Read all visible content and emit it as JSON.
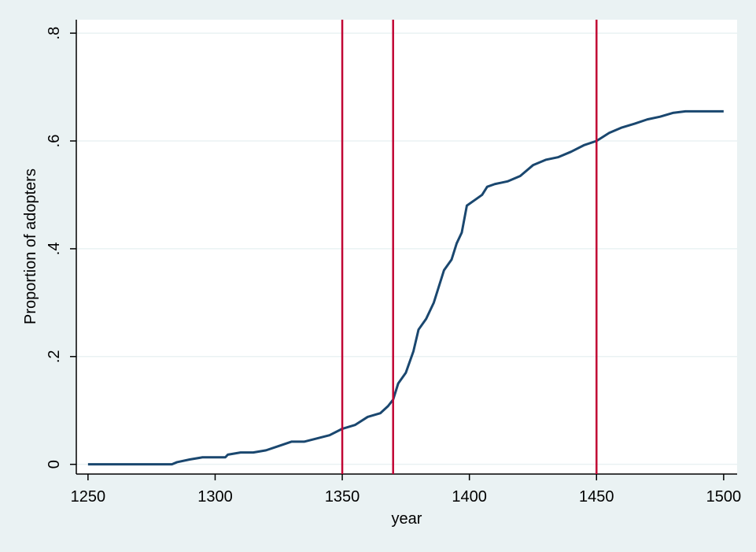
{
  "chart_data": {
    "type": "line",
    "x_label": "year",
    "y_label": "Proportion of adopters",
    "x": [
      1250,
      1283,
      1285,
      1290,
      1295,
      1304,
      1305,
      1310,
      1315,
      1320,
      1325,
      1330,
      1335,
      1340,
      1345,
      1350,
      1355,
      1360,
      1365,
      1368,
      1370,
      1372,
      1375,
      1378,
      1380,
      1383,
      1386,
      1388,
      1390,
      1393,
      1395,
      1397,
      1399,
      1402,
      1405,
      1407,
      1410,
      1415,
      1420,
      1425,
      1430,
      1435,
      1440,
      1445,
      1450,
      1455,
      1460,
      1465,
      1470,
      1475,
      1480,
      1485,
      1490,
      1500
    ],
    "series": [
      {
        "color": "#1a476f",
        "values": [
          0,
          0,
          0.004,
          0.009,
          0.013,
          0.013,
          0.018,
          0.022,
          0.022,
          0.026,
          0.034,
          0.042,
          0.042,
          0.048,
          0.054,
          0.066,
          0.073,
          0.088,
          0.095,
          0.108,
          0.12,
          0.15,
          0.17,
          0.21,
          0.25,
          0.27,
          0.3,
          0.33,
          0.36,
          0.38,
          0.41,
          0.43,
          0.48,
          0.49,
          0.5,
          0.515,
          0.52,
          0.525,
          0.535,
          0.555,
          0.565,
          0.57,
          0.58,
          0.592,
          0.6,
          0.615,
          0.625,
          0.632,
          0.64,
          0.645,
          0.652,
          0.655,
          0.655,
          0.655
        ]
      }
    ],
    "vlines": [
      1350,
      1370,
      1450
    ],
    "vline_color": "#c10534",
    "xlim": [
      1245.4,
      1505.3
    ],
    "xticks": [
      1250,
      1300,
      1350,
      1400,
      1450,
      1500
    ],
    "ylim": [
      -0.018,
      0.825
    ],
    "yticks": [
      0,
      {
        "value": 0.2,
        "label": ".2"
      },
      {
        "value": 0.4,
        "label": ".4"
      },
      {
        "value": 0.6,
        "label": ".6"
      },
      {
        "value": 0.8,
        "label": ".8"
      }
    ],
    "grid": true
  }
}
